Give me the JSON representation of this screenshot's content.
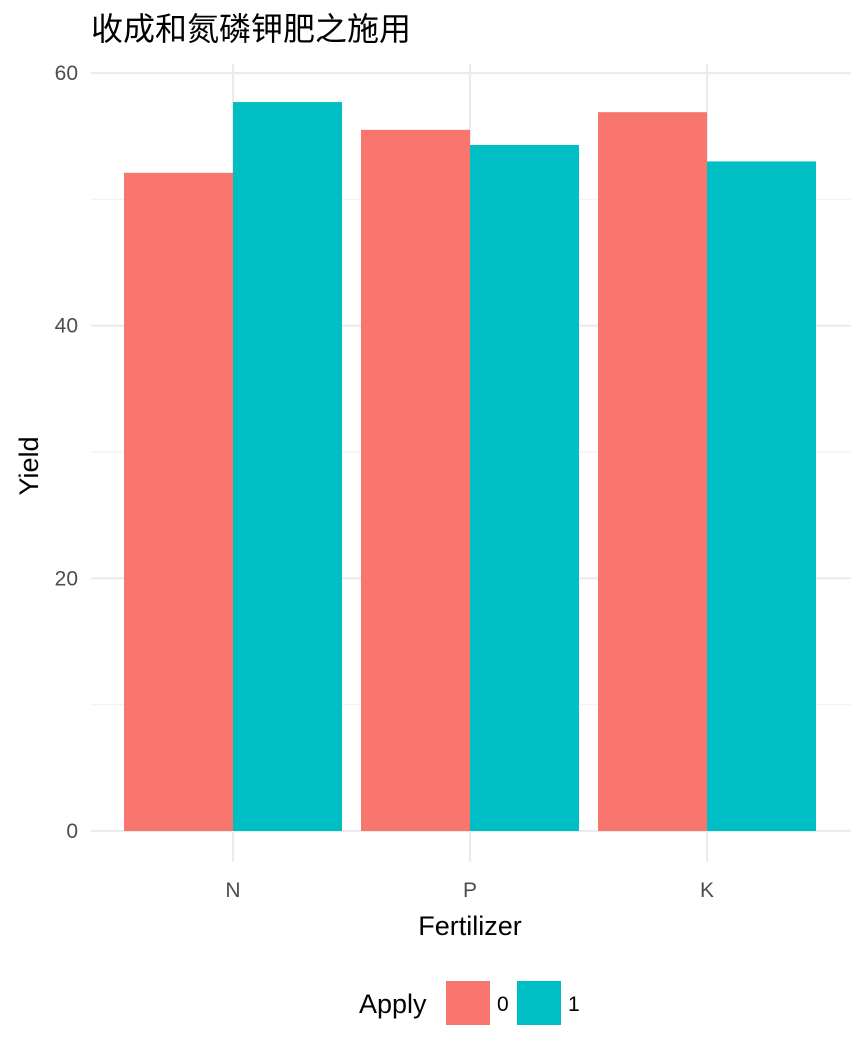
{
  "chart_data": {
    "type": "bar",
    "title": "收成和氮磷钾肥之施用",
    "xlabel": "Fertilizer",
    "ylabel": "Yield",
    "categories": [
      "N",
      "P",
      "K"
    ],
    "series": [
      {
        "name": "0",
        "values": [
          52.1,
          55.5,
          56.9
        ],
        "color": "#F8766D"
      },
      {
        "name": "1",
        "values": [
          57.7,
          54.3,
          53.0
        ],
        "color": "#00BFC4"
      }
    ],
    "ylim": [
      0,
      60
    ],
    "y_ticks": [
      "0",
      "20",
      "40",
      "60"
    ],
    "grid": true,
    "legend": {
      "title": "Apply",
      "position": "bottom",
      "items": [
        "0",
        "1"
      ]
    }
  }
}
